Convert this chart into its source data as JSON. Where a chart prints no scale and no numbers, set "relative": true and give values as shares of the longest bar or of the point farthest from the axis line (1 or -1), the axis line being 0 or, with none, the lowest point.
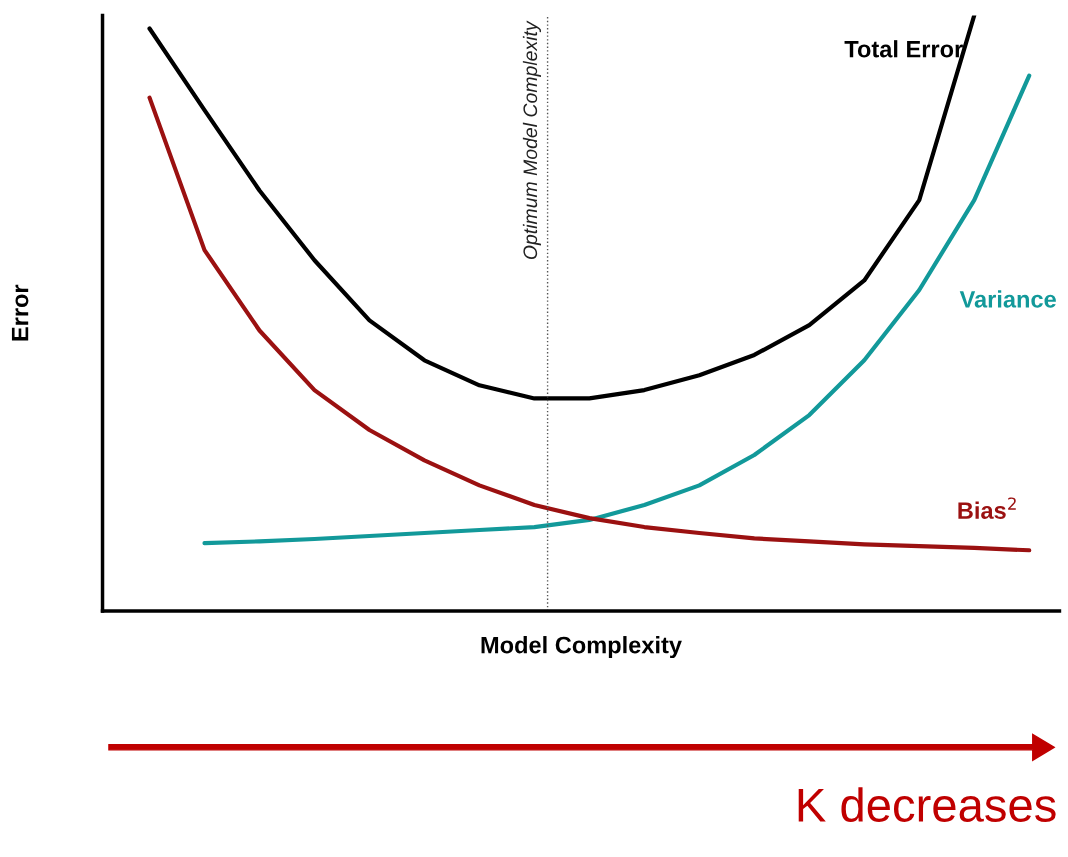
{
  "chart_data": {
    "type": "line",
    "relative": true,
    "xlabel": "Model Complexity",
    "ylabel": "Error",
    "categories": [
      null,
      null,
      null,
      null,
      null,
      null,
      null,
      null,
      null,
      null,
      null,
      null,
      null,
      null,
      null,
      null,
      null
    ],
    "series": [
      {
        "name": "Total Error",
        "color": "#000000",
        "values": [
          0.978,
          0.841,
          0.706,
          0.589,
          0.488,
          0.421,
          0.379,
          0.357,
          0.357,
          0.371,
          0.396,
          0.43,
          0.48,
          0.555,
          0.69,
          1.0,
          null
        ]
      },
      {
        "name": "Variance",
        "color": "#12999a",
        "values": [
          null,
          0.114,
          0.117,
          0.121,
          0.126,
          0.131,
          0.136,
          0.141,
          0.153,
          0.178,
          0.211,
          0.262,
          0.329,
          0.421,
          0.539,
          0.69,
          0.899
        ]
      },
      {
        "name": "Bias$^{2}$",
        "color": "#9b1111",
        "values": [
          0.862,
          0.606,
          0.471,
          0.371,
          0.304,
          0.253,
          0.211,
          0.178,
          0.156,
          0.141,
          0.131,
          0.122,
          0.117,
          0.112,
          0.109,
          0.106,
          0.102
        ]
      }
    ],
    "annotations": [
      "Optimum Model Complexity",
      "K decreases"
    ],
    "legend": false,
    "tick_labels": false,
    "marker": "none",
    "line_style": "solid"
  }
}
